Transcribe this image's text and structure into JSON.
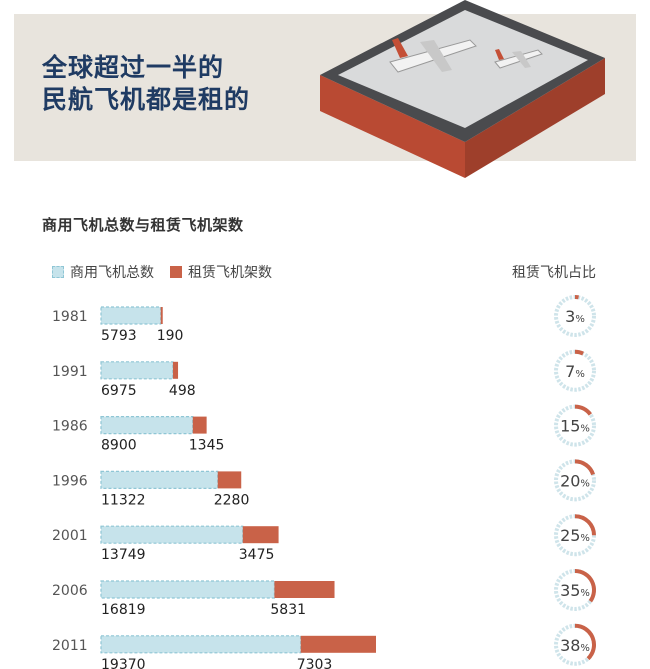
{
  "headline": "全球超过一半的\n民航飞机都是租的",
  "chart_data": {
    "type": "bar",
    "title": "商用飞机总数与租赁飞机架数",
    "categories": [
      "1981",
      "1991",
      "1986",
      "1996",
      "2001",
      "2006",
      "2011"
    ],
    "series": [
      {
        "name": "商用飞机总数",
        "values": [
          5793,
          6975,
          8900,
          11322,
          13749,
          16819,
          19370
        ]
      },
      {
        "name": "租赁飞机架数",
        "values": [
          190,
          498,
          1345,
          2280,
          3475,
          5831,
          7303
        ]
      }
    ],
    "ratio_title": "租赁飞机占比",
    "ratios": [
      3,
      7,
      15,
      20,
      25,
      35,
      38
    ],
    "ratio_unit": "%",
    "stacked": true,
    "legend_position": "top-left"
  },
  "colors": {
    "total_fill": "#c6e3eb",
    "total_border": "#8fc6d5",
    "lease": "#c96248",
    "ring_base": "#cfe4ea",
    "headline": "#1f3b63"
  }
}
